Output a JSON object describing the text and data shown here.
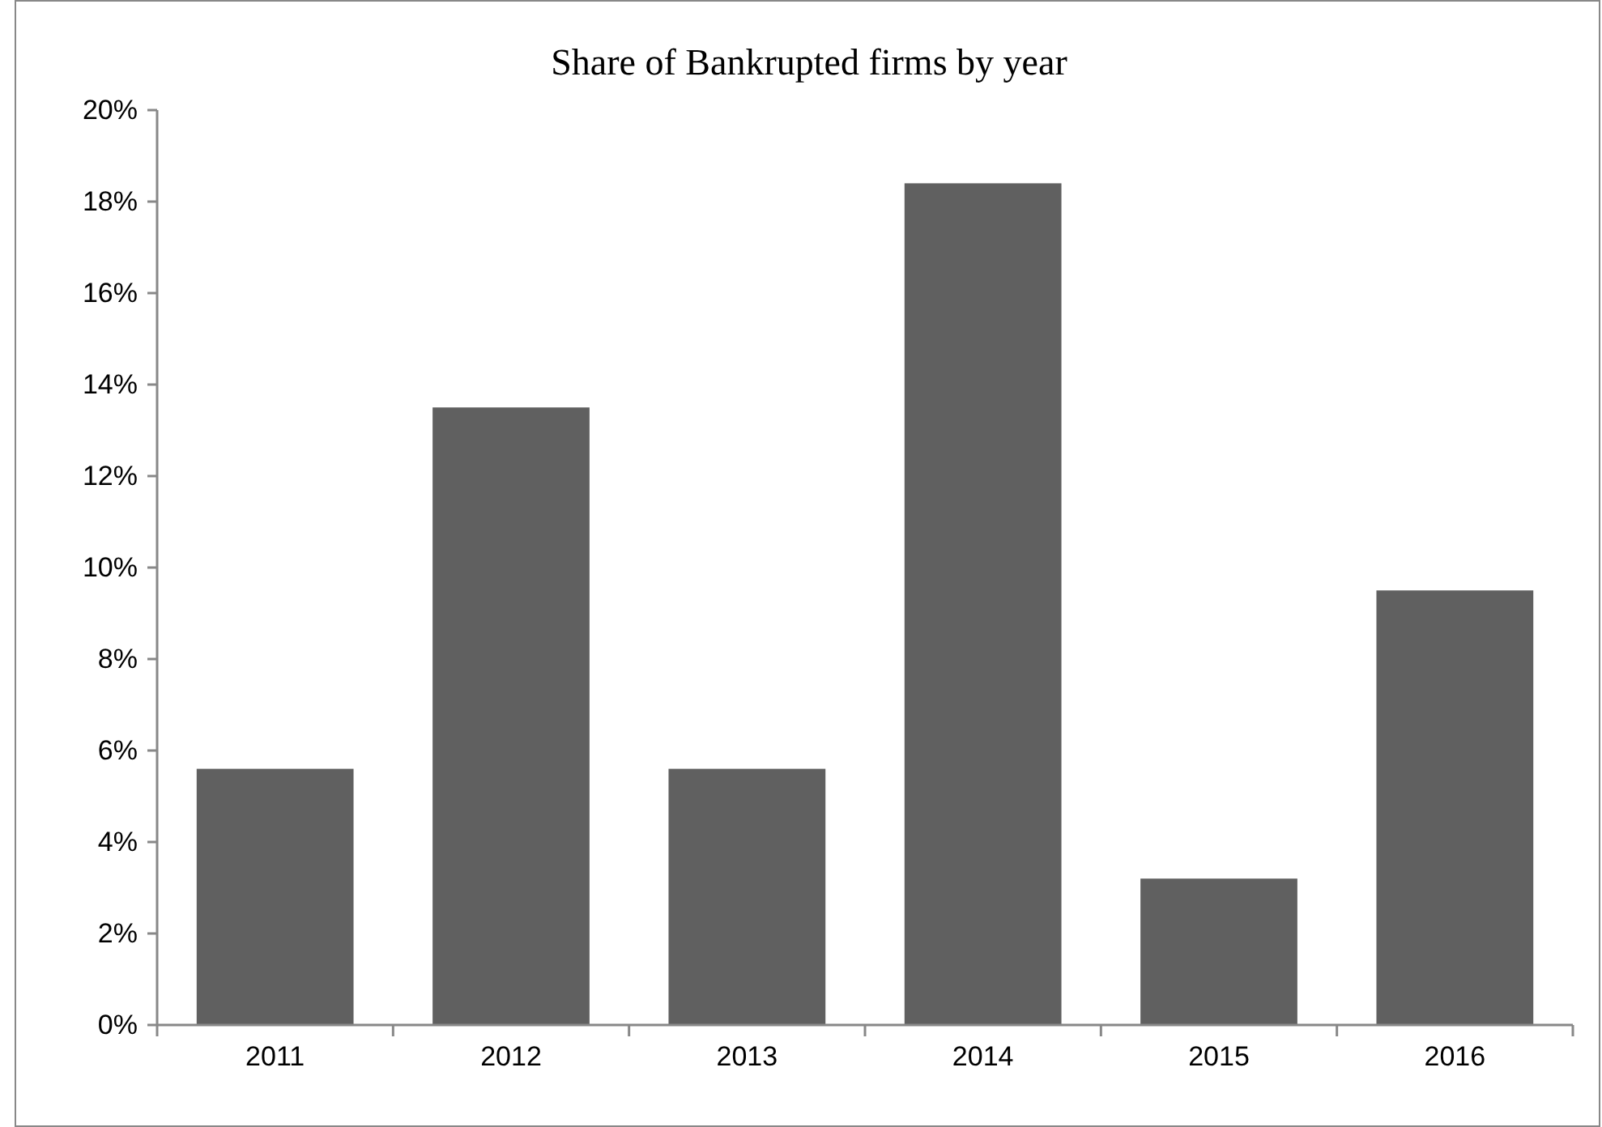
{
  "chart_data": {
    "type": "bar",
    "title": "Share of Bankrupted firms by year",
    "categories": [
      "2011",
      "2012",
      "2013",
      "2014",
      "2015",
      "2016"
    ],
    "values": [
      5.6,
      13.5,
      5.6,
      18.4,
      3.2,
      9.5
    ],
    "color": "#606060",
    "ylim": [
      0,
      20
    ],
    "yticks": [
      {
        "value": 0,
        "label": "0%"
      },
      {
        "value": 2,
        "label": "2%"
      },
      {
        "value": 4,
        "label": "4%"
      },
      {
        "value": 6,
        "label": "6%"
      },
      {
        "value": 8,
        "label": "8%"
      },
      {
        "value": 10,
        "label": "10%"
      },
      {
        "value": 12,
        "label": "12%"
      },
      {
        "value": 14,
        "label": "14%"
      },
      {
        "value": 16,
        "label": "16%"
      },
      {
        "value": 18,
        "label": "18%"
      },
      {
        "value": 20,
        "label": "20%"
      }
    ],
    "grid": false
  }
}
